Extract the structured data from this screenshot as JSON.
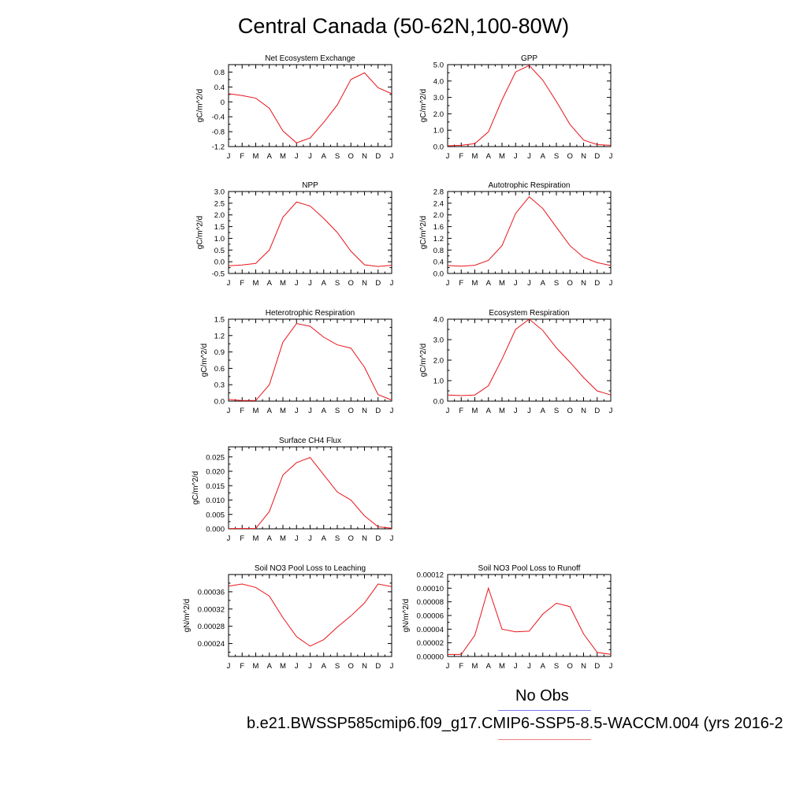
{
  "title": "Central Canada (50-62N,100-80W)",
  "legend": {
    "obs_label": "No Obs",
    "case_label": "b.e21.BWSSP585cmip6.f09_g17.CMIP6-SSP5-8.5-WACCM.004 (yrs 2016-2",
    "obs_color": "#7b7bf0",
    "model_color": "#f08080"
  },
  "line_color": "#e8141b",
  "chart_data": [
    {
      "type": "line",
      "title": "Net Ecosystem Exchange",
      "ylabel": "gC/m^2/d",
      "x": [
        "J",
        "F",
        "M",
        "A",
        "M",
        "J",
        "J",
        "A",
        "S",
        "O",
        "N",
        "D",
        "J"
      ],
      "ylim": [
        -1.2,
        1.0
      ],
      "yticks": [
        -1.2,
        -0.8,
        -0.4,
        0,
        0.4,
        0.8
      ],
      "ytick_labels": [
        "-1.2",
        "-0.8",
        "-0.4",
        "0",
        "0.4",
        "0.8"
      ],
      "values": [
        0.22,
        0.17,
        0.1,
        -0.17,
        -0.78,
        -1.1,
        -0.97,
        -0.55,
        -0.08,
        0.6,
        0.78,
        0.38,
        0.22
      ]
    },
    {
      "type": "line",
      "title": "GPP",
      "ylabel": "gC/m^2/d",
      "x": [
        "J",
        "F",
        "M",
        "A",
        "M",
        "J",
        "J",
        "A",
        "S",
        "O",
        "N",
        "D",
        "J"
      ],
      "ylim": [
        0,
        5.0
      ],
      "yticks": [
        0,
        1,
        2,
        3,
        4,
        5
      ],
      "ytick_labels": [
        "0.0",
        "1.0",
        "2.0",
        "3.0",
        "4.0",
        "5.0"
      ],
      "values": [
        0.05,
        0.08,
        0.18,
        0.9,
        2.85,
        4.55,
        4.95,
        4.05,
        2.75,
        1.35,
        0.4,
        0.12,
        0.08
      ]
    },
    {
      "type": "line",
      "title": "NPP",
      "ylabel": "gC/m^2/d",
      "x": [
        "J",
        "F",
        "M",
        "A",
        "M",
        "J",
        "J",
        "A",
        "S",
        "O",
        "N",
        "D",
        "J"
      ],
      "ylim": [
        -0.5,
        3.0
      ],
      "yticks": [
        -0.5,
        0,
        0.5,
        1,
        1.5,
        2,
        2.5,
        3
      ],
      "ytick_labels": [
        "-0.5",
        "0.0",
        "0.5",
        "1.0",
        "1.5",
        "2.0",
        "2.5",
        "3.0"
      ],
      "values": [
        -0.17,
        -0.14,
        -0.07,
        0.5,
        1.9,
        2.55,
        2.38,
        1.85,
        1.25,
        0.45,
        -0.13,
        -0.2,
        -0.15
      ]
    },
    {
      "type": "line",
      "title": "Autotrophic Respiration",
      "ylabel": "gC/m^2/d",
      "x": [
        "J",
        "F",
        "M",
        "A",
        "M",
        "J",
        "J",
        "A",
        "S",
        "O",
        "N",
        "D",
        "J"
      ],
      "ylim": [
        0,
        2.8
      ],
      "yticks": [
        0,
        0.4,
        0.8,
        1.2,
        1.6,
        2.0,
        2.4,
        2.8
      ],
      "ytick_labels": [
        "0.0",
        "0.4",
        "0.8",
        "1.2",
        "1.6",
        "2.0",
        "2.4",
        "2.8"
      ],
      "values": [
        0.27,
        0.25,
        0.28,
        0.45,
        0.95,
        2.05,
        2.62,
        2.22,
        1.58,
        0.95,
        0.55,
        0.37,
        0.27
      ]
    },
    {
      "type": "line",
      "title": "Heterotrophic Respiration",
      "ylabel": "gC/m^2/d",
      "x": [
        "J",
        "F",
        "M",
        "A",
        "M",
        "J",
        "J",
        "A",
        "S",
        "O",
        "N",
        "D",
        "J"
      ],
      "ylim": [
        0,
        1.5
      ],
      "yticks": [
        0,
        0.3,
        0.6,
        0.9,
        1.2,
        1.5
      ],
      "ytick_labels": [
        "0.0",
        "0.3",
        "0.6",
        "0.9",
        "1.2",
        "1.5"
      ],
      "values": [
        0.03,
        0.01,
        0.01,
        0.3,
        1.08,
        1.42,
        1.37,
        1.17,
        1.03,
        0.97,
        0.62,
        0.12,
        0.02
      ]
    },
    {
      "type": "line",
      "title": "Ecosystem Respiration",
      "ylabel": "gC/m^2/d",
      "x": [
        "J",
        "F",
        "M",
        "A",
        "M",
        "J",
        "J",
        "A",
        "S",
        "O",
        "N",
        "D",
        "J"
      ],
      "ylim": [
        0,
        4.0
      ],
      "yticks": [
        0,
        1,
        2,
        3,
        4
      ],
      "ytick_labels": [
        "0.0",
        "1.0",
        "2.0",
        "3.0",
        "4.0"
      ],
      "values": [
        0.3,
        0.27,
        0.3,
        0.75,
        2.05,
        3.5,
        4.0,
        3.45,
        2.6,
        1.9,
        1.15,
        0.5,
        0.3
      ]
    },
    {
      "type": "line",
      "title": "Surface CH4 Flux",
      "ylabel": "gC/m^2/d",
      "x": [
        "J",
        "F",
        "M",
        "A",
        "M",
        "J",
        "J",
        "A",
        "S",
        "O",
        "N",
        "D",
        "J"
      ],
      "ylim": [
        0,
        0.0285
      ],
      "yticks": [
        0,
        0.005,
        0.01,
        0.015,
        0.02,
        0.025
      ],
      "ytick_labels": [
        "0.000",
        "0.005",
        "0.010",
        "0.015",
        "0.020",
        "0.025"
      ],
      "values": [
        0.0001,
        0.0001,
        0.0001,
        0.006,
        0.0187,
        0.023,
        0.0248,
        0.0188,
        0.0128,
        0.01,
        0.0045,
        0.0007,
        0.0002
      ]
    },
    {
      "type": "line",
      "title": "Soil NO3 Pool Loss to Leaching",
      "ylabel": "gN/m^2/d",
      "x": [
        "J",
        "F",
        "M",
        "A",
        "M",
        "J",
        "J",
        "A",
        "S",
        "O",
        "N",
        "D",
        "J"
      ],
      "ylim": [
        0.00021,
        0.0004
      ],
      "yticks": [
        0.00024,
        0.00028,
        0.00032,
        0.00036
      ],
      "ytick_labels": [
        "0.00024",
        "0.00028",
        "0.00032",
        "0.00036"
      ],
      "values": [
        0.000373,
        0.000378,
        0.00037,
        0.00035,
        0.0003,
        0.000256,
        0.000234,
        0.000249,
        0.000278,
        0.000304,
        0.000334,
        0.000378,
        0.000372
      ]
    },
    {
      "type": "line",
      "title": "Soil NO3 Pool Loss to Runoff",
      "ylabel": "gN/m^2/d",
      "x": [
        "J",
        "F",
        "M",
        "A",
        "M",
        "J",
        "J",
        "A",
        "S",
        "O",
        "N",
        "D",
        "J"
      ],
      "ylim": [
        0,
        0.00012
      ],
      "yticks": [
        0,
        2e-05,
        4e-05,
        6e-05,
        8e-05,
        0.0001,
        0.00012
      ],
      "ytick_labels": [
        "0.00000",
        "0.00002",
        "0.00004",
        "0.00006",
        "0.00008",
        "0.00010",
        "0.00012"
      ],
      "values": [
        3e-06,
        3e-06,
        3.1e-05,
        0.0001,
        4e-05,
        3.6e-05,
        3.7e-05,
        6.2e-05,
        7.8e-05,
        7.3e-05,
        3.3e-05,
        6e-06,
        3e-06
      ]
    }
  ]
}
